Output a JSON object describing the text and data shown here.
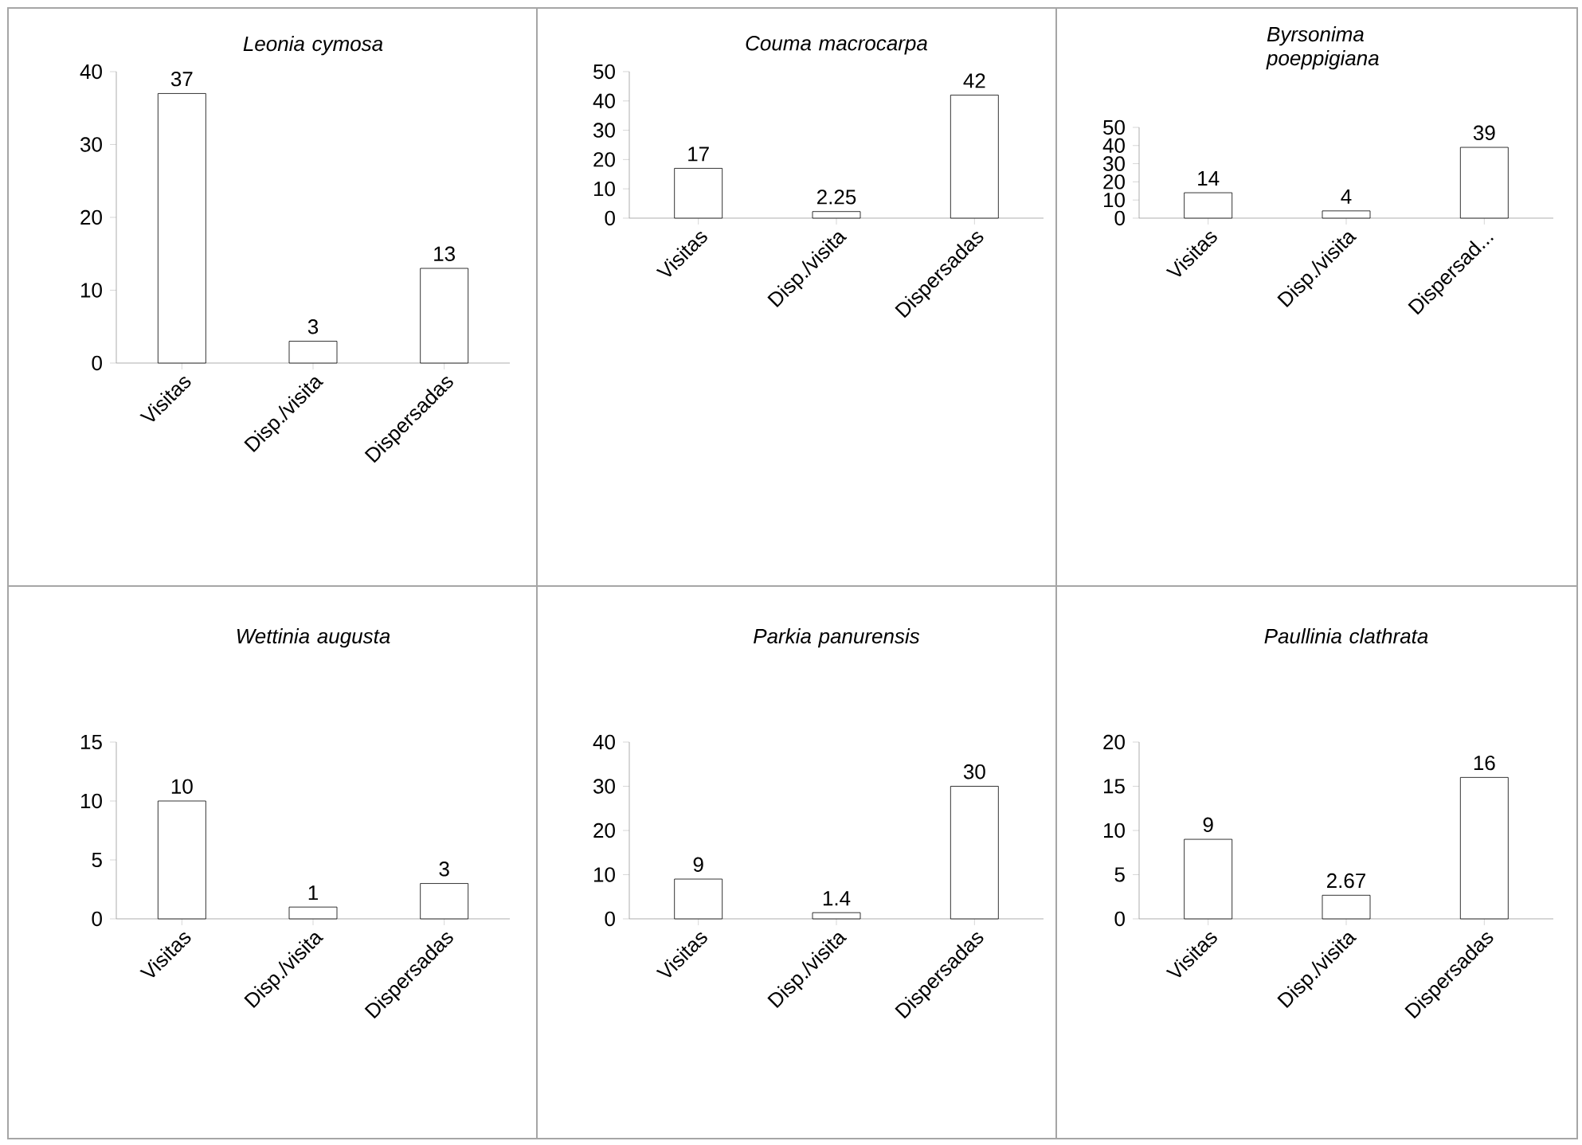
{
  "chart_data": [
    {
      "type": "bar",
      "title": "Leonia cymosa",
      "categories": [
        "Visitas",
        "Disp./visita",
        "Dispersadas"
      ],
      "values": [
        37,
        3,
        13
      ],
      "color": "#ffffff",
      "ylim": [
        0,
        40
      ],
      "yticks": [
        0,
        10,
        20,
        30,
        40
      ],
      "data_labels": true,
      "grid": false
    },
    {
      "type": "bar",
      "title": "Couma macrocarpa",
      "categories": [
        "Visitas",
        "Disp./visita",
        "Dispersadas"
      ],
      "values": [
        17,
        2.25,
        42
      ],
      "color": "#ffffff",
      "ylim": [
        0,
        50
      ],
      "yticks": [
        0,
        10,
        20,
        30,
        40,
        50
      ],
      "data_labels": true,
      "grid": false
    },
    {
      "type": "bar",
      "title": "Byrsonima poeppigiana",
      "categories": [
        "Visitas",
        "Disp./visita",
        "Dispersad..."
      ],
      "values": [
        14,
        4,
        39
      ],
      "color": "#ffffff",
      "ylim": [
        0,
        50
      ],
      "yticks": [
        0,
        10,
        20,
        30,
        40,
        50
      ],
      "data_labels": true,
      "grid": false
    },
    {
      "type": "bar",
      "title": "Wettinia augusta",
      "categories": [
        "Visitas",
        "Disp./visita",
        "Dispersadas"
      ],
      "values": [
        10,
        1,
        3
      ],
      "color": "#ffffff",
      "ylim": [
        0,
        15
      ],
      "yticks": [
        0,
        5,
        10,
        15
      ],
      "data_labels": true,
      "grid": false
    },
    {
      "type": "bar",
      "title": "Parkia panurensis",
      "categories": [
        "Visitas",
        "Disp./visita",
        "Dispersadas"
      ],
      "values": [
        9,
        1.4,
        30
      ],
      "color": "#ffffff",
      "ylim": [
        0,
        40
      ],
      "yticks": [
        0,
        10,
        20,
        30,
        40
      ],
      "data_labels": true,
      "grid": false
    },
    {
      "type": "bar",
      "title": "Paullinia clathrata",
      "categories": [
        "Visitas",
        "Disp./visita",
        "Dispersadas"
      ],
      "values": [
        9,
        2.67,
        16
      ],
      "color": "#ffffff",
      "ylim": [
        0,
        20
      ],
      "yticks": [
        0,
        5,
        10,
        15,
        20
      ],
      "data_labels": true,
      "grid": false
    }
  ]
}
